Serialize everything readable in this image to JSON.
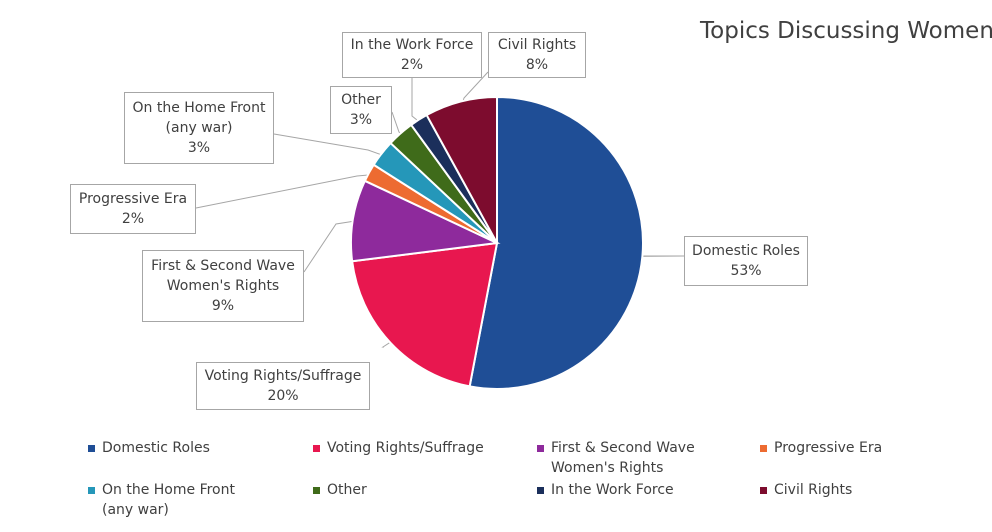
{
  "chart_data": {
    "type": "pie",
    "title": "Topics Discussing Women",
    "legend_position": "bottom",
    "slices": [
      {
        "name": "Domestic Roles",
        "value": 53,
        "label": [
          "Domestic Roles",
          "53%"
        ],
        "color": "#1f4e96"
      },
      {
        "name": "Voting Rights/Suffrage",
        "value": 20,
        "label": [
          "Voting Rights/Suffrage",
          "20%"
        ],
        "color": "#e8174f"
      },
      {
        "name": "First & Second Wave Women's Rights",
        "value": 9,
        "label": [
          "First & Second Wave",
          "Women's Rights",
          "9%"
        ],
        "legend": [
          "First & Second Wave",
          "Women's Rights"
        ],
        "color": "#8e2a9c"
      },
      {
        "name": "Progressive Era",
        "value": 2,
        "label": [
          "Progressive Era",
          "2%"
        ],
        "color": "#ed6b31"
      },
      {
        "name": "On the Home Front (any war)",
        "value": 3,
        "label": [
          "On the Home Front",
          "(any war)",
          "3%"
        ],
        "legend": [
          "On the Home Front",
          "(any war)"
        ],
        "color": "#2597b9"
      },
      {
        "name": "Other",
        "value": 3,
        "label": [
          "Other",
          "3%"
        ],
        "color": "#3f6b1a"
      },
      {
        "name": "In the Work Force",
        "value": 2,
        "label": [
          "In the Work Force",
          "2%"
        ],
        "color": "#1b2f5b"
      },
      {
        "name": "Civil Rights",
        "value": 8,
        "label": [
          "Civil Rights",
          "8%"
        ],
        "color": "#7d0c2e"
      }
    ]
  }
}
